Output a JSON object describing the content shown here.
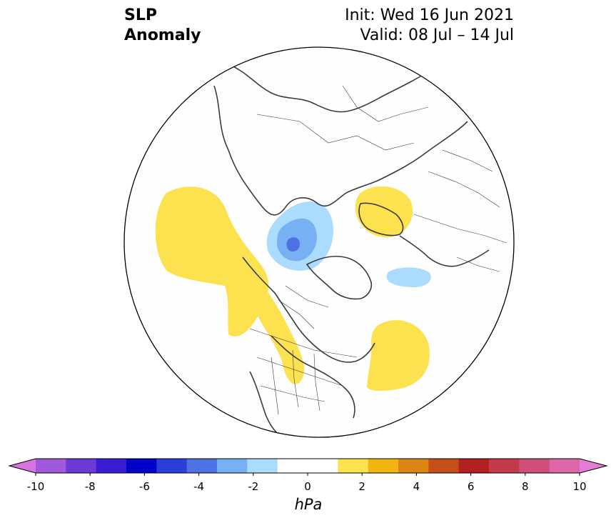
{
  "header": {
    "title_line1": "SLP",
    "title_line2": "Anomaly",
    "init": "Init: Wed 16 Jun 2021",
    "valid": "Valid: 08 Jul – 14 Jul"
  },
  "map": {
    "projection": "north polar stereographic",
    "anomalies": [
      {
        "region": "North Pacific / Gulf of Alaska",
        "sign": "positive",
        "level": "1-2 hPa"
      },
      {
        "region": "Western North America coast",
        "sign": "positive",
        "level": "1-2 hPa"
      },
      {
        "region": "Northern Siberia / Taymyr",
        "sign": "negative",
        "level": "up to -4 hPa"
      },
      {
        "region": "Scandinavia",
        "sign": "positive",
        "level": "1-2 hPa"
      },
      {
        "region": "North Atlantic (east of Newfoundland)",
        "sign": "positive",
        "level": "1-2 hPa"
      },
      {
        "region": "Baffin Bay / Greenland Sea",
        "sign": "negative",
        "level": "-1 to -2 hPa"
      }
    ]
  },
  "colorbar": {
    "unit": "hPa",
    "ticks": [
      "-10",
      "-8",
      "-6",
      "-4",
      "-2",
      "0",
      "2",
      "4",
      "6",
      "8",
      "10"
    ],
    "colors": [
      "#d675e0",
      "#a058dd",
      "#6d3ad8",
      "#3a1cd2",
      "#0000c8",
      "#2a3ed8",
      "#4f72e3",
      "#78b0f4",
      "#acdcfd",
      "#ffffff",
      "#ffffff",
      "#fde24f",
      "#f2b50f",
      "#de8414",
      "#c65018",
      "#b2201f",
      "#c53a4a",
      "#cf4f7a",
      "#dc66a6",
      "#e67ad7"
    ]
  }
}
